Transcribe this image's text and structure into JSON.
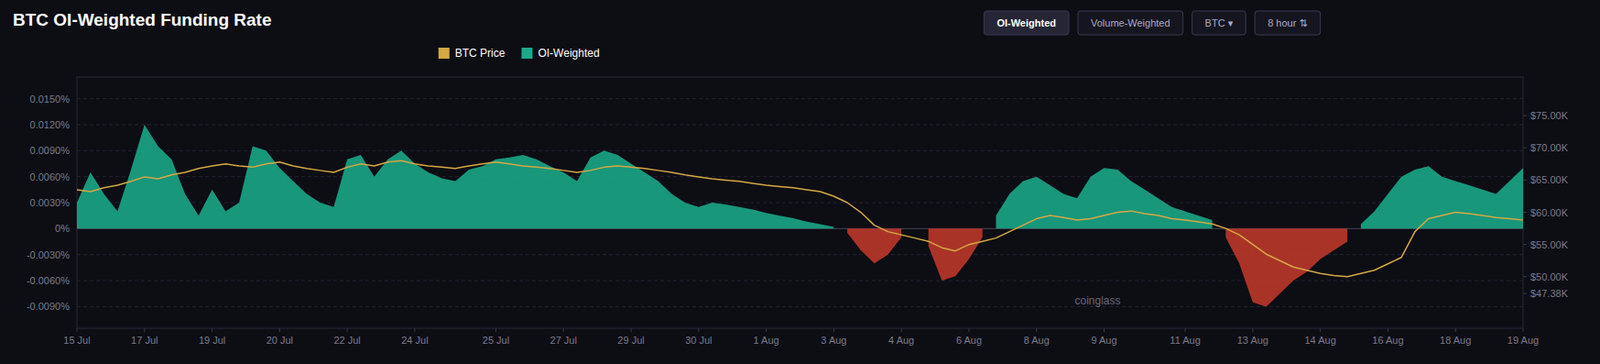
{
  "chart_data": {
    "type": "area",
    "title": "BTC OI-Weighted Funding Rate",
    "annotations": [
      "coinglass"
    ],
    "buttons": [
      "OI-Weighted",
      "Volume-Weighted",
      "BTC ▾",
      "8 hour ⇅"
    ],
    "categories": [
      "15 Jul",
      null,
      null,
      null,
      null,
      "17 Jul",
      null,
      null,
      null,
      null,
      "19 Jul",
      null,
      null,
      null,
      null,
      "20 Jul",
      null,
      null,
      null,
      null,
      "22 Jul",
      null,
      null,
      null,
      null,
      "24 Jul",
      null,
      null,
      null,
      null,
      null,
      "25 Jul",
      null,
      null,
      null,
      null,
      "27 Jul",
      null,
      null,
      null,
      null,
      "29 Jul",
      null,
      null,
      null,
      null,
      "30 Jul",
      null,
      null,
      null,
      null,
      "1 Aug",
      null,
      null,
      null,
      null,
      "3 Aug",
      null,
      null,
      null,
      null,
      "4 Aug",
      null,
      null,
      null,
      null,
      "6 Aug",
      null,
      null,
      null,
      null,
      "8 Aug",
      null,
      null,
      null,
      null,
      "9 Aug",
      null,
      null,
      null,
      null,
      null,
      "11 Aug",
      null,
      null,
      null,
      null,
      "13 Aug",
      null,
      null,
      null,
      null,
      "14 Aug",
      null,
      null,
      null,
      null,
      "16 Aug",
      null,
      null,
      null,
      null,
      "18 Aug",
      null,
      null,
      null,
      null,
      "19 Aug"
    ],
    "series": [
      {
        "name": "BTC Price",
        "type": "line",
        "axis": "y2",
        "color": "#d4a843",
        "values": [
          63500,
          63200,
          63800,
          64200,
          64800,
          65500,
          65200,
          65800,
          66200,
          66800,
          67200,
          67500,
          67200,
          67000,
          67500,
          67800,
          67200,
          66800,
          66500,
          66200,
          67000,
          67500,
          67200,
          67800,
          68000,
          67500,
          67200,
          67000,
          66800,
          67200,
          67500,
          67800,
          67500,
          67200,
          67000,
          66800,
          66500,
          66200,
          66500,
          67000,
          67200,
          67000,
          66800,
          66500,
          66200,
          65800,
          65500,
          65200,
          65000,
          64800,
          64500,
          64200,
          64000,
          63800,
          63500,
          63200,
          62500,
          61500,
          60000,
          58000,
          57000,
          56500,
          56000,
          55500,
          54500,
          54000,
          55000,
          55500,
          56000,
          57000,
          58000,
          59000,
          59500,
          59200,
          58800,
          59000,
          59500,
          60000,
          60200,
          59800,
          59500,
          59000,
          58800,
          58500,
          58200,
          57500,
          56500,
          55000,
          53500,
          52500,
          51500,
          51000,
          50500,
          50200,
          50000,
          50500,
          51000,
          52000,
          53000,
          57000,
          59000,
          59500,
          60000,
          59800,
          59500,
          59200,
          59000,
          58800
        ]
      },
      {
        "name": "OI-Weighted",
        "type": "area",
        "color": "#1aab8a",
        "colors": [
          "#1aab8a",
          "#1aab8a",
          "#1aab8a",
          "#1aab8a",
          "#1aab8a",
          "#1aab8a",
          "#1aab8a",
          "#1aab8a",
          "#1aab8a",
          "#1aab8a",
          "#1aab8a",
          "#1aab8a",
          "#1aab8a",
          "#1aab8a",
          "#1aab8a",
          "#1aab8a",
          "#1aab8a",
          "#1aab8a",
          "#1aab8a",
          "#1aab8a",
          "#1aab8a",
          "#1aab8a",
          "#1aab8a",
          "#1aab8a",
          "#1aab8a",
          "#1aab8a",
          "#1aab8a",
          "#1aab8a",
          "#1aab8a",
          "#1aab8a",
          "#1aab8a",
          "#1aab8a",
          "#1aab8a",
          "#1aab8a",
          "#1aab8a",
          "#1aab8a",
          "#1aab8a",
          "#1aab8a",
          "#1aab8a",
          "#1aab8a",
          "#1aab8a",
          "#1aab8a",
          "#1aab8a",
          "#1aab8a",
          "#1aab8a",
          "#1aab8a",
          "#1aab8a",
          "#1aab8a",
          "#1aab8a",
          "#1aab8a",
          "#1aab8a",
          "#1aab8a",
          "#1aab8a",
          "#1aab8a",
          "#1aab8a",
          "#1aab8a",
          "#1aab8a",
          "#c0392b",
          "#c0392b",
          "#c0392b",
          "#c0392b",
          "#c0392b",
          "#1aab8a",
          "#c0392b",
          "#c0392b",
          "#c0392b",
          "#c0392b",
          "#c0392b",
          "#1aab8a",
          "#1aab8a",
          "#1aab8a",
          "#1aab8a",
          "#1aab8a",
          "#1aab8a",
          "#1aab8a",
          "#1aab8a",
          "#1aab8a",
          "#1aab8a",
          "#1aab8a",
          "#1aab8a",
          "#1aab8a",
          "#1aab8a",
          "#1aab8a",
          "#1aab8a",
          "#1aab8a",
          "#c0392b",
          "#c0392b",
          "#c0392b",
          "#c0392b",
          "#c0392b",
          "#c0392b",
          "#c0392b",
          "#c0392b",
          "#c0392b",
          "#c0392b",
          "#1aab8a",
          "#1aab8a",
          "#1aab8a",
          "#1aab8a",
          "#1aab8a",
          "#1aab8a",
          "#1aab8a",
          "#1aab8a",
          "#1aab8a",
          "#1aab8a",
          "#1aab8a",
          "#1aab8a",
          "#1aab8a"
        ],
        "values": [
          0.003,
          0.0065,
          0.004,
          0.002,
          0.0068,
          0.012,
          0.0095,
          0.008,
          0.004,
          0.0015,
          0.0045,
          0.002,
          0.003,
          0.0095,
          0.009,
          0.007,
          0.0055,
          0.004,
          0.003,
          0.0025,
          0.008,
          0.0085,
          0.006,
          0.008,
          0.009,
          0.0075,
          0.0065,
          0.0058,
          0.0055,
          0.0068,
          0.0072,
          0.008,
          0.0082,
          0.0085,
          0.008,
          0.0072,
          0.0065,
          0.0055,
          0.0082,
          0.009,
          0.0085,
          0.0075,
          0.0065,
          0.0055,
          0.004,
          0.003,
          0.0025,
          0.003,
          0.0028,
          0.0025,
          0.0022,
          0.0018,
          0.0015,
          0.0012,
          0.0008,
          0.0005,
          0.0002,
          -0.0005,
          -0.0025,
          -0.004,
          -0.003,
          -0.001,
          0.0005,
          -0.002,
          -0.006,
          -0.0055,
          -0.0035,
          -0.001,
          0.0015,
          0.004,
          0.0055,
          0.006,
          0.005,
          0.004,
          0.0035,
          0.006,
          0.007,
          0.0068,
          0.0055,
          0.0045,
          0.0035,
          0.0025,
          0.002,
          0.0015,
          0.001,
          -0.001,
          -0.004,
          -0.0085,
          -0.009,
          -0.0075,
          -0.006,
          -0.005,
          -0.0035,
          -0.0025,
          -0.0015,
          0.0005,
          0.002,
          0.004,
          0.006,
          0.0068,
          0.0072,
          0.006,
          0.0055,
          0.005,
          0.0045,
          0.004,
          0.0055,
          0.007
        ]
      }
    ],
    "ylim": [
      -0.0115,
      0.0175
    ],
    "yticks": [
      {
        "value": -0.009,
        "label": "-0.0090%"
      },
      {
        "value": -0.006,
        "label": "-0.0060%"
      },
      {
        "value": -0.003,
        "label": "-0.0030%"
      },
      {
        "value": 0.0,
        "label": "0%"
      },
      {
        "value": 0.003,
        "label": "0.0030%"
      },
      {
        "value": 0.006,
        "label": "0.0060%"
      },
      {
        "value": 0.009,
        "label": "0.0090%"
      },
      {
        "value": 0.012,
        "label": "0.0120%"
      },
      {
        "value": 0.015,
        "label": "0.0150%"
      }
    ],
    "y2lim": [
      42000,
      81000
    ],
    "y2ticks": [
      {
        "value": 47380,
        "label": "$47.38K"
      },
      {
        "value": 50000,
        "label": "$50.00K"
      },
      {
        "value": 55000,
        "label": "$55.00K"
      },
      {
        "value": 60000,
        "label": "$60.00K"
      },
      {
        "value": 65000,
        "label": "$65.00K"
      },
      {
        "value": 70000,
        "label": "$70.00K"
      },
      {
        "value": 75000,
        "label": "$75.00K"
      }
    ],
    "grid": true,
    "legend": "top"
  }
}
